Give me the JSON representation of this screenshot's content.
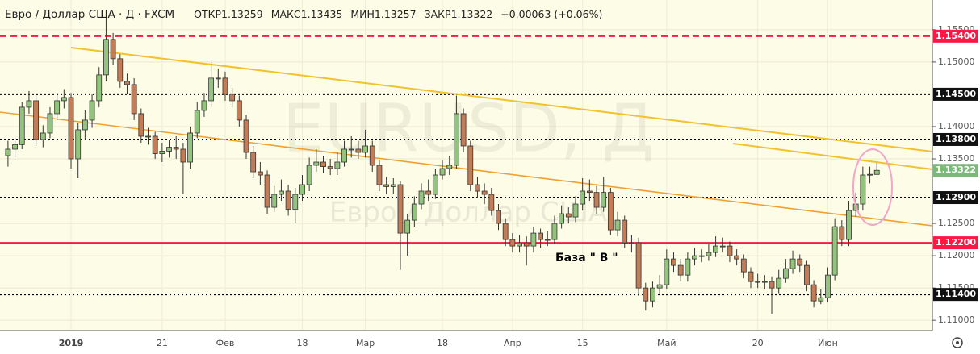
{
  "chart_data": {
    "type": "candlestick",
    "title": "Евро / Доллар США · Д · FXCM",
    "header_labels": {
      "open": "ОТКР",
      "high": "МАКС",
      "low": "МИН",
      "close": "ЗАКР",
      "change": "+0.00063 (+0.06%)"
    },
    "watermark": [
      "EURUSD, Д",
      "Евро / Доллар США"
    ],
    "annotations": [
      "База  \" В \""
    ],
    "up_color": "#93c47d",
    "down_color": "#c27c57",
    "ylim": [
      1.1084,
      1.1596
    ],
    "yticks": [
      {
        "value": 1.11,
        "label": "1.11000"
      },
      {
        "value": 1.115,
        "label": "1.11500"
      },
      {
        "value": 1.12,
        "label": "1.12000"
      },
      {
        "value": 1.125,
        "label": "1.12500"
      },
      {
        "value": 1.135,
        "label": "1.13500"
      },
      {
        "value": 1.14,
        "label": "1.14000"
      },
      {
        "value": 1.15,
        "label": "1.15000"
      },
      {
        "value": 1.155,
        "label": "1.15500"
      }
    ],
    "grid": true,
    "levels": [
      {
        "value": 1.154,
        "label": "1.15400",
        "color": "#ff1744",
        "style": "dashed"
      },
      {
        "value": 1.145,
        "label": "1.14500",
        "color": "#000000",
        "style": "dotted"
      },
      {
        "value": 1.138,
        "label": "1.13800",
        "color": "#000000",
        "style": "dotted"
      },
      {
        "value": 1.129,
        "label": "1.12900",
        "color": "#000000",
        "style": "dotted"
      },
      {
        "value": 1.122,
        "label": "1.12200",
        "color": "#ff1744",
        "style": "solid"
      },
      {
        "value": 1.114,
        "label": "1.11400",
        "color": "#000000",
        "style": "dotted"
      }
    ],
    "last_price_color": "#7cb87a",
    "categories": [
      null,
      null,
      null,
      null,
      null,
      null,
      null,
      null,
      null,
      "2019",
      null,
      null,
      null,
      null,
      null,
      null,
      null,
      null,
      null,
      null,
      null,
      null,
      "21",
      null,
      null,
      null,
      null,
      null,
      null,
      null,
      null,
      "Фев",
      null,
      null,
      null,
      null,
      null,
      null,
      null,
      null,
      null,
      null,
      "18",
      null,
      null,
      null,
      null,
      null,
      null,
      null,
      null,
      "Мар",
      null,
      null,
      null,
      null,
      null,
      null,
      null,
      null,
      null,
      null,
      "18",
      null,
      null,
      null,
      null,
      null,
      null,
      null,
      null,
      null,
      "Апр",
      null,
      null,
      null,
      null,
      null,
      null,
      null,
      null,
      null,
      "15",
      null,
      null,
      null,
      null,
      null,
      null,
      null,
      null,
      null,
      null,
      null,
      "Май",
      null,
      null,
      null,
      null,
      null,
      null,
      null,
      null,
      null,
      null,
      null,
      null,
      "20",
      null,
      null,
      null,
      null,
      null,
      null,
      null,
      null,
      null,
      "Июн",
      null,
      null,
      null,
      null,
      null,
      null,
      null
    ],
    "open": [
      1.1355,
      1.1365,
      1.1372,
      1.143,
      1.144,
      1.138,
      1.139,
      1.142,
      1.144,
      1.1445,
      1.135,
      1.1395,
      1.141,
      1.144,
      1.148,
      1.1535,
      1.1505,
      1.147,
      1.1465,
      1.142,
      1.1385,
      1.1385,
      1.1358,
      1.1362,
      1.1368,
      1.1365,
      1.1345,
      1.139,
      1.1425,
      1.144,
      1.1475,
      1.1475,
      1.145,
      1.144,
      1.141,
      1.136,
      1.133,
      1.1325,
      1.1275,
      1.1295,
      1.13,
      1.1272,
      1.1295,
      1.131,
      1.134,
      1.1345,
      1.1338,
      1.1335,
      1.1345,
      1.1365,
      1.1365,
      1.136,
      1.137,
      1.134,
      1.131,
      1.1307,
      1.131,
      1.1235,
      1.1255,
      1.128,
      1.13,
      1.1295,
      1.1325,
      1.1335,
      1.134,
      1.142,
      1.137,
      1.131,
      1.13,
      1.1295,
      1.127,
      1.125,
      1.1225,
      1.1215,
      1.122,
      1.1215,
      1.1235,
      1.1225,
      1.1225,
      1.125,
      1.1265,
      1.126,
      1.128,
      1.13,
      1.1298,
      1.1275,
      1.1298,
      1.124,
      1.1255,
      1.122,
      1.122,
      1.115,
      1.113,
      1.115,
      1.1155,
      1.1195,
      1.1185,
      1.117,
      1.1195,
      1.12,
      1.12,
      1.1205,
      1.1215,
      1.1215,
      1.12,
      1.1195,
      1.1175,
      1.116,
      1.116,
      1.116,
      1.115,
      1.1165,
      1.118,
      1.1195,
      1.1185,
      1.1155,
      1.113,
      1.1135,
      1.117,
      1.1245,
      1.1225,
      1.127,
      1.128,
      1.1325,
      1.13259
    ],
    "high": [
      1.1378,
      1.1385,
      1.1438,
      1.1455,
      1.1448,
      1.1402,
      1.143,
      1.1452,
      1.1458,
      1.1452,
      1.1405,
      1.1425,
      1.145,
      1.1492,
      1.157,
      1.1545,
      1.1512,
      1.1482,
      1.1475,
      1.1428,
      1.1398,
      1.1392,
      1.1375,
      1.138,
      1.1385,
      1.1375,
      1.14,
      1.1438,
      1.1452,
      1.15,
      1.149,
      1.1485,
      1.146,
      1.1448,
      1.1418,
      1.137,
      1.1345,
      1.1332,
      1.1308,
      1.1318,
      1.131,
      1.1305,
      1.1325,
      1.1352,
      1.1365,
      1.1355,
      1.135,
      1.136,
      1.1378,
      1.1385,
      1.1378,
      1.1395,
      1.1378,
      1.1348,
      1.1322,
      1.132,
      1.1315,
      1.1265,
      1.1292,
      1.1312,
      1.1318,
      1.1335,
      1.1348,
      1.1355,
      1.1448,
      1.1428,
      1.1378,
      1.1322,
      1.1312,
      1.1305,
      1.128,
      1.1258,
      1.1235,
      1.1232,
      1.123,
      1.1245,
      1.1242,
      1.1238,
      1.1262,
      1.1278,
      1.1275,
      1.1292,
      1.132,
      1.1318,
      1.1308,
      1.1322,
      1.1305,
      1.1268,
      1.1262,
      1.1232,
      1.1228,
      1.1158,
      1.116,
      1.117,
      1.121,
      1.1205,
      1.1195,
      1.1205,
      1.1212,
      1.121,
      1.1218,
      1.123,
      1.1228,
      1.1222,
      1.121,
      1.1202,
      1.1182,
      1.1172,
      1.117,
      1.1168,
      1.1178,
      1.1195,
      1.1208,
      1.1202,
      1.1192,
      1.1162,
      1.1148,
      1.1182,
      1.1258,
      1.1255,
      1.1285,
      1.1298,
      1.1338,
      1.1338,
      1.13435
    ],
    "low": [
      1.1338,
      1.1352,
      1.1365,
      1.142,
      1.137,
      1.1368,
      1.1382,
      1.141,
      1.1428,
      1.1335,
      1.132,
      1.138,
      1.1398,
      1.143,
      1.147,
      1.1495,
      1.146,
      1.145,
      1.141,
      1.1375,
      1.1372,
      1.135,
      1.1345,
      1.1352,
      1.135,
      1.1295,
      1.1335,
      1.1382,
      1.1415,
      1.143,
      1.146,
      1.144,
      1.143,
      1.14,
      1.135,
      1.132,
      1.131,
      1.1265,
      1.1268,
      1.1285,
      1.1262,
      1.125,
      1.1285,
      1.13,
      1.133,
      1.1328,
      1.1325,
      1.1325,
      1.1338,
      1.1352,
      1.135,
      1.1352,
      1.133,
      1.13,
      1.1295,
      1.1295,
      1.1178,
      1.12,
      1.1245,
      1.1272,
      1.1285,
      1.1288,
      1.1318,
      1.1325,
      1.1335,
      1.136,
      1.13,
      1.129,
      1.128,
      1.1262,
      1.124,
      1.1215,
      1.1205,
      1.1205,
      1.1185,
      1.1205,
      1.1212,
      1.1215,
      1.1218,
      1.1242,
      1.125,
      1.1252,
      1.127,
      1.1285,
      1.1265,
      1.1268,
      1.1232,
      1.123,
      1.1212,
      1.1205,
      1.1138,
      1.1115,
      1.112,
      1.114,
      1.1148,
      1.1175,
      1.116,
      1.116,
      1.1185,
      1.119,
      1.1192,
      1.1198,
      1.1205,
      1.119,
      1.1185,
      1.1165,
      1.115,
      1.115,
      1.1148,
      1.111,
      1.1142,
      1.1158,
      1.1172,
      1.1175,
      1.1145,
      1.112,
      1.1125,
      1.1128,
      1.1162,
      1.1215,
      1.1215,
      1.126,
      1.127,
      1.1312,
      1.13257
    ],
    "close": [
      1.1365,
      1.1372,
      1.143,
      1.144,
      1.138,
      1.139,
      1.142,
      1.144,
      1.1445,
      1.135,
      1.1395,
      1.141,
      1.144,
      1.148,
      1.1535,
      1.1505,
      1.147,
      1.1465,
      1.142,
      1.1385,
      1.1385,
      1.1358,
      1.1362,
      1.1368,
      1.1365,
      1.1345,
      1.139,
      1.1425,
      1.144,
      1.1475,
      1.1475,
      1.145,
      1.144,
      1.141,
      1.136,
      1.133,
      1.1325,
      1.1275,
      1.1295,
      1.13,
      1.1272,
      1.1295,
      1.131,
      1.134,
      1.1345,
      1.1338,
      1.1335,
      1.1345,
      1.1365,
      1.1365,
      1.136,
      1.137,
      1.134,
      1.131,
      1.1307,
      1.131,
      1.1235,
      1.1255,
      1.128,
      1.13,
      1.1295,
      1.1325,
      1.1335,
      1.134,
      1.142,
      1.137,
      1.131,
      1.13,
      1.1295,
      1.127,
      1.125,
      1.1225,
      1.1215,
      1.122,
      1.1215,
      1.1235,
      1.1225,
      1.1225,
      1.125,
      1.1265,
      1.126,
      1.128,
      1.13,
      1.1298,
      1.1275,
      1.1298,
      1.124,
      1.1255,
      1.122,
      1.122,
      1.115,
      1.113,
      1.115,
      1.1155,
      1.1195,
      1.1185,
      1.117,
      1.1195,
      1.12,
      1.12,
      1.1205,
      1.1215,
      1.1215,
      1.12,
      1.1195,
      1.1175,
      1.116,
      1.116,
      1.116,
      1.115,
      1.1165,
      1.118,
      1.1195,
      1.1185,
      1.1155,
      1.113,
      1.1135,
      1.117,
      1.1245,
      1.1225,
      1.127,
      1.128,
      1.1325,
      1.1326,
      1.13322
    ]
  }
}
